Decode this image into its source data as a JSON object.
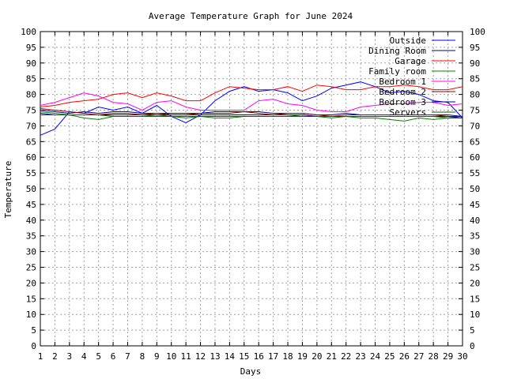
{
  "chart_data": {
    "type": "line",
    "title": "Average Temperature Graph for June 2024",
    "xlabel": "Days",
    "ylabel": "Temperature",
    "xlim": [
      1,
      30
    ],
    "ylim": [
      0,
      100
    ],
    "x_ticks": [
      1,
      2,
      3,
      4,
      5,
      6,
      7,
      8,
      9,
      10,
      11,
      12,
      13,
      14,
      15,
      16,
      17,
      18,
      19,
      20,
      21,
      22,
      23,
      24,
      25,
      26,
      27,
      28,
      29,
      30
    ],
    "y_ticks": [
      0,
      5,
      10,
      15,
      20,
      25,
      30,
      35,
      40,
      45,
      50,
      55,
      60,
      65,
      70,
      75,
      80,
      85,
      90,
      95,
      100
    ],
    "grid": true,
    "legend_position": "top-right",
    "x": [
      1,
      2,
      3,
      4,
      5,
      6,
      7,
      8,
      9,
      10,
      11,
      12,
      13,
      14,
      15,
      16,
      17,
      18,
      19,
      20,
      21,
      22,
      23,
      24,
      25,
      26,
      27,
      28,
      29,
      30
    ],
    "series": [
      {
        "name": "Outside",
        "color": "#0000ff",
        "values": [
          67,
          69,
          74.5,
          74,
          76,
          75,
          76,
          74,
          76.5,
          73,
          71,
          73.5,
          78,
          81,
          82.5,
          81,
          81.5,
          80.5,
          78,
          79.5,
          82,
          83,
          84,
          82.5,
          80.5,
          81,
          80,
          78,
          77.5,
          72.5
        ]
      },
      {
        "name": "Dining Room",
        "color": "#00008b",
        "values": [
          75,
          74.5,
          74,
          74.5,
          74,
          74.5,
          74.5,
          74,
          74,
          74,
          74,
          74,
          74.5,
          74.5,
          74.5,
          74.5,
          74,
          74,
          74,
          73.5,
          73.5,
          74,
          73.5,
          73.5,
          73.5,
          73.5,
          73.5,
          73.5,
          73.5,
          73
        ]
      },
      {
        "name": "Garage",
        "color": "#ff0000",
        "values": [
          76,
          76.5,
          77.5,
          78,
          78.5,
          80,
          80.5,
          79,
          80.5,
          79.5,
          78,
          78,
          80.5,
          82.5,
          82,
          81.5,
          81.5,
          82.5,
          81,
          83,
          82.5,
          81.5,
          81.5,
          82.5,
          82.5,
          83,
          82.5,
          81.5,
          81.5,
          82.5
        ]
      },
      {
        "name": "Family room",
        "color": "#008000",
        "values": [
          74.5,
          74,
          73.5,
          72.5,
          72,
          73,
          73,
          73,
          73.5,
          73,
          72.5,
          73,
          72.5,
          72.5,
          73,
          73,
          73,
          73,
          73.5,
          73,
          72.5,
          73,
          72.5,
          72.5,
          72,
          71.5,
          72.5,
          72,
          72.5,
          72.5
        ]
      },
      {
        "name": "Bedroom 1",
        "color": "#ff00ff",
        "values": [
          76.5,
          77.5,
          79,
          80.5,
          79.5,
          77.5,
          77,
          75,
          77.5,
          78,
          76,
          75,
          75,
          75,
          75,
          78,
          78.5,
          77,
          76.5,
          75,
          74.5,
          74.5,
          76,
          76.5,
          77,
          77,
          77.5,
          77.5,
          76.5,
          77
        ]
      },
      {
        "name": "Bedroom 2",
        "color": "#8b0000",
        "values": [
          75.5,
          75,
          74.5,
          74,
          73.5,
          74,
          74,
          73.5,
          74,
          73.5,
          73.5,
          74,
          74,
          74,
          74.5,
          74,
          73.5,
          74,
          74,
          73.5,
          73,
          73.5,
          73.5,
          73.5,
          73.5,
          73.5,
          73.5,
          73.5,
          73,
          73
        ]
      },
      {
        "name": "Bedroom 3",
        "color": "#00008b",
        "values": [
          74,
          73.5,
          73.5,
          73.5,
          73.5,
          73.5,
          73.5,
          73.5,
          73.5,
          73.5,
          73.5,
          73.5,
          73.5,
          73.5,
          73.5,
          73.5,
          73.5,
          73.5,
          73.5,
          73,
          73,
          73,
          73,
          73,
          73,
          73,
          73,
          73,
          73,
          72.5
        ]
      },
      {
        "name": "Servers",
        "color": "#006400",
        "values": [
          73.5,
          73.5,
          73.5,
          73.5,
          73.5,
          73,
          73,
          73,
          73,
          73,
          73,
          73,
          73,
          73,
          73,
          73,
          73,
          73,
          73,
          73,
          73,
          73,
          73,
          73,
          73,
          73,
          73,
          73,
          72.5,
          72.5
        ]
      }
    ]
  }
}
